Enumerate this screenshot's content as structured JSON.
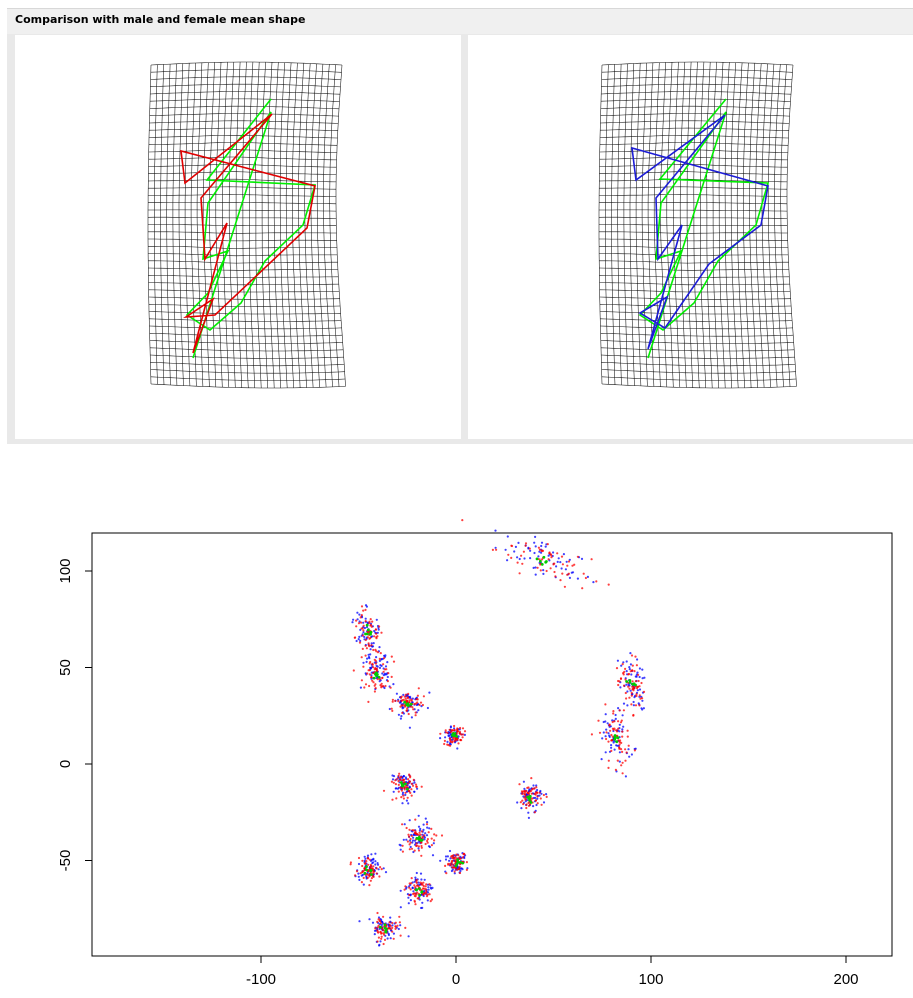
{
  "panel": {
    "title": "Comparison with male and female mean shape",
    "left_view": {
      "grid": "deformation-grid",
      "mean_shape_color": "#00ee00",
      "compared_shape_color": "#e00000"
    },
    "right_view": {
      "grid": "deformation-grid",
      "mean_shape_color": "#00ee00",
      "compared_shape_color": "#1c1cd6"
    }
  },
  "chart_data": {
    "type": "scatter",
    "title": "",
    "xlabel": "",
    "ylabel": "",
    "xlim": [
      -185,
      225
    ],
    "ylim": [
      -100,
      120
    ],
    "xticks": [
      -100,
      0,
      100,
      200
    ],
    "yticks": [
      -50,
      0,
      50,
      100
    ],
    "x_tick_labels": [
      "-100",
      "0",
      "100",
      "200"
    ],
    "y_tick_labels": [
      "-50",
      "0",
      "50",
      "100"
    ],
    "colors": {
      "group1": "#ff0000",
      "group2": "#0000ff",
      "mean": "#00cc00"
    },
    "landmark_centers": [
      {
        "x": 45,
        "y": 106,
        "sx": 12,
        "sy": 5
      },
      {
        "x": -45,
        "y": 68,
        "sx": 3.5,
        "sy": 6
      },
      {
        "x": -40,
        "y": 47,
        "sx": 4,
        "sy": 5
      },
      {
        "x": -25,
        "y": 31,
        "sx": 4,
        "sy": 3
      },
      {
        "x": -1,
        "y": 15,
        "sx": 2.5,
        "sy": 2.5
      },
      {
        "x": 90,
        "y": 41,
        "sx": 3,
        "sy": 7
      },
      {
        "x": 82,
        "y": 14,
        "sx": 4,
        "sy": 8
      },
      {
        "x": -26,
        "y": -11,
        "sx": 3,
        "sy": 3
      },
      {
        "x": 38,
        "y": -17,
        "sx": 3,
        "sy": 3.5
      },
      {
        "x": -19,
        "y": -39,
        "sx": 4,
        "sy": 4
      },
      {
        "x": 0,
        "y": -51,
        "sx": 2.5,
        "sy": 2.5
      },
      {
        "x": -45,
        "y": -55,
        "sx": 3,
        "sy": 3.5
      },
      {
        "x": -19,
        "y": -65,
        "sx": 3.5,
        "sy": 4
      },
      {
        "x": -36,
        "y": -85,
        "sx": 3.5,
        "sy": 3.5
      }
    ],
    "points_per_landmark_per_group": 60
  }
}
